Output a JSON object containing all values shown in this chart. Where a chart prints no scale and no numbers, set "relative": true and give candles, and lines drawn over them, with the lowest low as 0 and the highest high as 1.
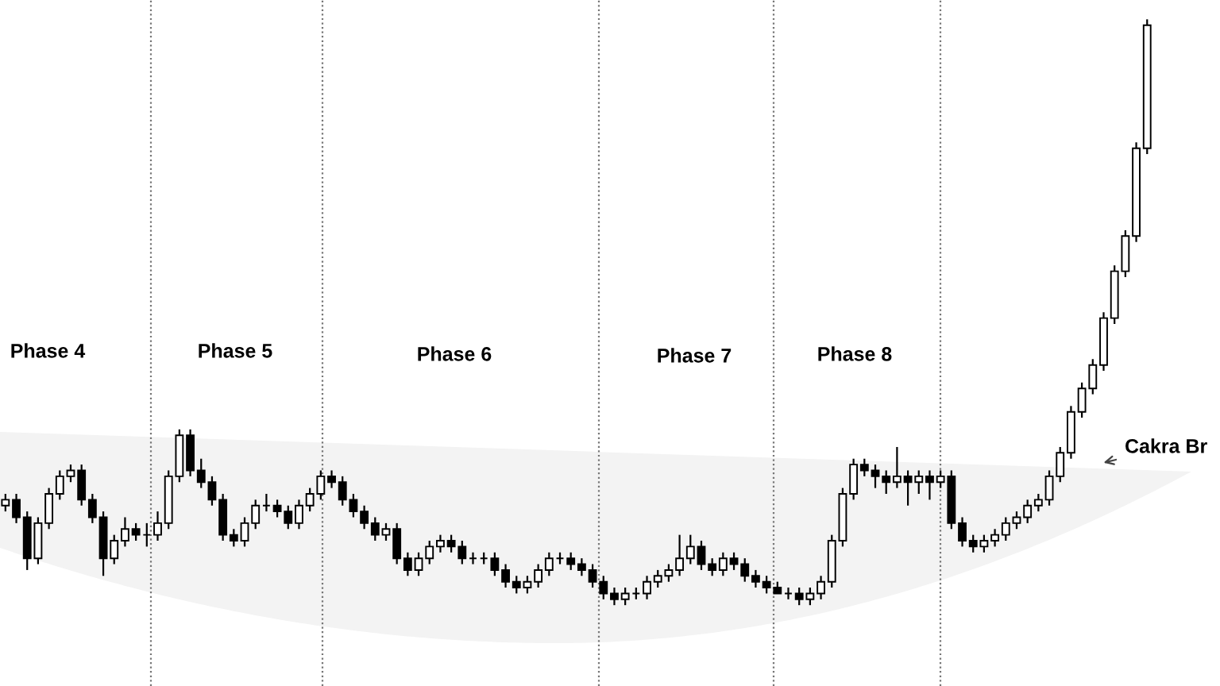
{
  "chart_data": {
    "type": "candlestick",
    "relative": true,
    "categories": [
      null,
      null,
      null,
      null,
      null,
      null,
      null,
      null,
      null,
      null,
      null,
      null,
      null,
      null,
      null,
      null,
      null,
      null,
      null,
      null,
      null,
      null,
      null,
      null,
      null,
      null,
      null,
      null,
      null,
      null,
      null,
      null,
      null,
      null,
      null,
      null,
      null,
      null,
      null,
      null,
      null,
      null,
      null,
      null,
      null,
      null,
      null,
      null,
      null,
      null,
      null,
      null,
      null,
      null,
      null,
      null,
      null,
      null,
      null,
      null,
      null,
      null,
      null,
      null,
      null,
      null,
      null,
      null,
      null,
      null,
      null,
      null,
      null,
      null,
      null,
      null,
      null,
      null,
      null,
      null,
      null,
      null,
      null,
      null,
      null,
      null,
      null,
      null,
      null,
      null,
      null,
      null,
      null,
      null,
      null,
      null,
      null,
      null,
      null,
      null,
      null,
      null,
      null,
      null,
      null,
      null
    ],
    "ohlc": [
      [
        0.17,
        0.19,
        0.16,
        0.18
      ],
      [
        0.18,
        0.19,
        0.14,
        0.15
      ],
      [
        0.15,
        0.16,
        0.06,
        0.08
      ],
      [
        0.08,
        0.15,
        0.07,
        0.14
      ],
      [
        0.14,
        0.2,
        0.13,
        0.19
      ],
      [
        0.19,
        0.23,
        0.18,
        0.22
      ],
      [
        0.22,
        0.24,
        0.21,
        0.23
      ],
      [
        0.23,
        0.24,
        0.17,
        0.18
      ],
      [
        0.18,
        0.19,
        0.14,
        0.15
      ],
      [
        0.15,
        0.16,
        0.05,
        0.08
      ],
      [
        0.08,
        0.12,
        0.07,
        0.11
      ],
      [
        0.11,
        0.15,
        0.1,
        0.13
      ],
      [
        0.13,
        0.14,
        0.11,
        0.12
      ],
      [
        0.12,
        0.14,
        0.1,
        0.12
      ],
      [
        0.12,
        0.16,
        0.11,
        0.14
      ],
      [
        0.14,
        0.23,
        0.13,
        0.22
      ],
      [
        0.22,
        0.3,
        0.21,
        0.29
      ],
      [
        0.29,
        0.3,
        0.22,
        0.23
      ],
      [
        0.23,
        0.25,
        0.2,
        0.21
      ],
      [
        0.21,
        0.22,
        0.17,
        0.18
      ],
      [
        0.18,
        0.19,
        0.11,
        0.12
      ],
      [
        0.12,
        0.13,
        0.1,
        0.11
      ],
      [
        0.11,
        0.15,
        0.1,
        0.14
      ],
      [
        0.14,
        0.18,
        0.13,
        0.17
      ],
      [
        0.17,
        0.19,
        0.16,
        0.17
      ],
      [
        0.17,
        0.18,
        0.15,
        0.16
      ],
      [
        0.16,
        0.17,
        0.13,
        0.14
      ],
      [
        0.14,
        0.18,
        0.13,
        0.17
      ],
      [
        0.17,
        0.2,
        0.16,
        0.19
      ],
      [
        0.19,
        0.23,
        0.18,
        0.22
      ],
      [
        0.22,
        0.23,
        0.2,
        0.21
      ],
      [
        0.21,
        0.22,
        0.17,
        0.18
      ],
      [
        0.18,
        0.19,
        0.15,
        0.16
      ],
      [
        0.16,
        0.17,
        0.13,
        0.14
      ],
      [
        0.14,
        0.15,
        0.11,
        0.12
      ],
      [
        0.12,
        0.14,
        0.11,
        0.13
      ],
      [
        0.13,
        0.14,
        0.07,
        0.08
      ],
      [
        0.08,
        0.09,
        0.05,
        0.06
      ],
      [
        0.06,
        0.09,
        0.05,
        0.08
      ],
      [
        0.08,
        0.11,
        0.07,
        0.1
      ],
      [
        0.1,
        0.12,
        0.09,
        0.11
      ],
      [
        0.11,
        0.12,
        0.09,
        0.1
      ],
      [
        0.1,
        0.11,
        0.07,
        0.08
      ],
      [
        0.08,
        0.09,
        0.07,
        0.08
      ],
      [
        0.08,
        0.09,
        0.07,
        0.08
      ],
      [
        0.08,
        0.09,
        0.05,
        0.06
      ],
      [
        0.06,
        0.07,
        0.03,
        0.04
      ],
      [
        0.04,
        0.05,
        0.02,
        0.03
      ],
      [
        0.03,
        0.05,
        0.02,
        0.04
      ],
      [
        0.04,
        0.07,
        0.03,
        0.06
      ],
      [
        0.06,
        0.09,
        0.05,
        0.08
      ],
      [
        0.08,
        0.09,
        0.07,
        0.08
      ],
      [
        0.08,
        0.09,
        0.06,
        0.07
      ],
      [
        0.07,
        0.08,
        0.05,
        0.06
      ],
      [
        0.06,
        0.07,
        0.03,
        0.04
      ],
      [
        0.04,
        0.05,
        0.01,
        0.02
      ],
      [
        0.02,
        0.03,
        0,
        0.01
      ],
      [
        0.01,
        0.03,
        0,
        0.02
      ],
      [
        0.02,
        0.03,
        0.01,
        0.02
      ],
      [
        0.02,
        0.05,
        0.01,
        0.04
      ],
      [
        0.04,
        0.06,
        0.03,
        0.05
      ],
      [
        0.05,
        0.07,
        0.04,
        0.06
      ],
      [
        0.06,
        0.12,
        0.05,
        0.08
      ],
      [
        0.08,
        0.12,
        0.07,
        0.1
      ],
      [
        0.1,
        0.11,
        0.06,
        0.07
      ],
      [
        0.07,
        0.08,
        0.05,
        0.06
      ],
      [
        0.06,
        0.09,
        0.05,
        0.08
      ],
      [
        0.08,
        0.09,
        0.06,
        0.07
      ],
      [
        0.07,
        0.08,
        0.04,
        0.05
      ],
      [
        0.05,
        0.06,
        0.03,
        0.04
      ],
      [
        0.04,
        0.05,
        0.02,
        0.03
      ],
      [
        0.03,
        0.04,
        0.02,
        0.02
      ],
      [
        0.02,
        0.03,
        0.01,
        0.02
      ],
      [
        0.02,
        0.03,
        0,
        0.01
      ],
      [
        0.01,
        0.03,
        0,
        0.02
      ],
      [
        0.02,
        0.05,
        0.01,
        0.04
      ],
      [
        0.04,
        0.12,
        0.03,
        0.11
      ],
      [
        0.11,
        0.2,
        0.1,
        0.19
      ],
      [
        0.19,
        0.25,
        0.18,
        0.24
      ],
      [
        0.24,
        0.25,
        0.22,
        0.23
      ],
      [
        0.23,
        0.24,
        0.2,
        0.22
      ],
      [
        0.22,
        0.23,
        0.19,
        0.21
      ],
      [
        0.21,
        0.27,
        0.2,
        0.22
      ],
      [
        0.22,
        0.23,
        0.17,
        0.21
      ],
      [
        0.21,
        0.23,
        0.19,
        0.22
      ],
      [
        0.22,
        0.23,
        0.18,
        0.21
      ],
      [
        0.21,
        0.23,
        0.2,
        0.22
      ],
      [
        0.22,
        0.23,
        0.13,
        0.14
      ],
      [
        0.14,
        0.15,
        0.1,
        0.11
      ],
      [
        0.11,
        0.12,
        0.09,
        0.1
      ],
      [
        0.1,
        0.12,
        0.09,
        0.11
      ],
      [
        0.11,
        0.13,
        0.1,
        0.12
      ],
      [
        0.12,
        0.15,
        0.11,
        0.14
      ],
      [
        0.14,
        0.16,
        0.13,
        0.15
      ],
      [
        0.15,
        0.18,
        0.14,
        0.17
      ],
      [
        0.17,
        0.19,
        0.16,
        0.18
      ],
      [
        0.18,
        0.23,
        0.17,
        0.22
      ],
      [
        0.22,
        0.27,
        0.21,
        0.26
      ],
      [
        0.26,
        0.34,
        0.25,
        0.33
      ],
      [
        0.33,
        0.38,
        0.32,
        0.37
      ],
      [
        0.37,
        0.42,
        0.36,
        0.41
      ],
      [
        0.41,
        0.5,
        0.4,
        0.49
      ],
      [
        0.49,
        0.58,
        0.48,
        0.57
      ],
      [
        0.57,
        0.64,
        0.56,
        0.63
      ],
      [
        0.63,
        0.79,
        0.62,
        0.78
      ],
      [
        0.78,
        1,
        0.77,
        0.99
      ]
    ],
    "annotations": [
      "Phase 4",
      "Phase 5",
      "Phase 6",
      "Phase 7",
      "Phase 8",
      "Cakra Br"
    ]
  }
}
